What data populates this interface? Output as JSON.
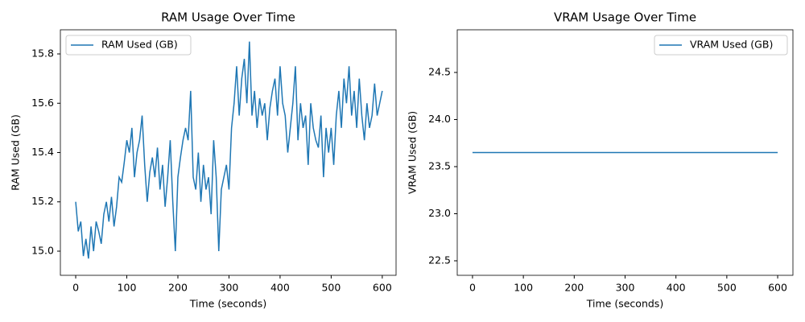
{
  "chart_data": [
    {
      "type": "line",
      "title": "RAM Usage Over Time",
      "xlabel": "Time (seconds)",
      "ylabel": "RAM Used (GB)",
      "x": [
        0,
        5,
        10,
        15,
        20,
        25,
        30,
        35,
        40,
        45,
        50,
        55,
        60,
        65,
        70,
        75,
        80,
        85,
        90,
        95,
        100,
        105,
        110,
        115,
        120,
        125,
        130,
        135,
        140,
        145,
        150,
        155,
        160,
        165,
        170,
        175,
        180,
        185,
        190,
        195,
        200,
        205,
        210,
        215,
        220,
        225,
        230,
        235,
        240,
        245,
        250,
        255,
        260,
        265,
        270,
        275,
        280,
        285,
        290,
        295,
        300,
        305,
        310,
        315,
        320,
        325,
        330,
        335,
        340,
        345,
        350,
        355,
        360,
        365,
        370,
        375,
        380,
        385,
        390,
        395,
        400,
        405,
        410,
        415,
        420,
        425,
        430,
        435,
        440,
        445,
        450,
        455,
        460,
        465,
        470,
        475,
        480,
        485,
        490,
        495,
        500,
        505,
        510,
        515,
        520,
        525,
        530,
        535,
        540,
        545,
        550,
        555,
        560,
        565,
        570,
        575,
        580,
        585,
        590,
        595,
        600
      ],
      "series": [
        {
          "name": "RAM Used (GB)",
          "color": "#1f77b4",
          "values": [
            15.2,
            15.08,
            15.12,
            14.98,
            15.05,
            14.97,
            15.1,
            15.0,
            15.12,
            15.08,
            15.03,
            15.15,
            15.2,
            15.12,
            15.22,
            15.1,
            15.18,
            15.3,
            15.28,
            15.36,
            15.45,
            15.4,
            15.5,
            15.3,
            15.4,
            15.45,
            15.55,
            15.35,
            15.2,
            15.32,
            15.38,
            15.3,
            15.42,
            15.25,
            15.35,
            15.18,
            15.3,
            15.45,
            15.2,
            15.0,
            15.3,
            15.38,
            15.45,
            15.5,
            15.45,
            15.65,
            15.3,
            15.25,
            15.4,
            15.2,
            15.35,
            15.25,
            15.3,
            15.15,
            15.45,
            15.3,
            15.0,
            15.25,
            15.3,
            15.35,
            15.25,
            15.5,
            15.6,
            15.75,
            15.55,
            15.7,
            15.78,
            15.6,
            15.85,
            15.55,
            15.65,
            15.5,
            15.62,
            15.55,
            15.6,
            15.45,
            15.58,
            15.65,
            15.7,
            15.55,
            15.75,
            15.6,
            15.55,
            15.4,
            15.5,
            15.6,
            15.75,
            15.45,
            15.6,
            15.5,
            15.55,
            15.35,
            15.6,
            15.5,
            15.45,
            15.42,
            15.55,
            15.3,
            15.5,
            15.4,
            15.5,
            15.35,
            15.55,
            15.65,
            15.5,
            15.7,
            15.6,
            15.75,
            15.55,
            15.65,
            15.5,
            15.7,
            15.55,
            15.45,
            15.6,
            15.5,
            15.55,
            15.68,
            15.55,
            15.6,
            15.65
          ]
        }
      ],
      "xlim": [
        -30,
        627
      ],
      "xticks": [
        0,
        100,
        200,
        300,
        400,
        500,
        600
      ],
      "ylim": [
        14.902,
        15.898
      ],
      "yticks": [
        {
          "value": 15,
          "label": "15.0"
        },
        15.2,
        15.4,
        15.6,
        15.8
      ],
      "legend": "upper left"
    },
    {
      "type": "line",
      "title": "VRAM Usage Over Time",
      "xlabel": "Time (seconds)",
      "ylabel": "VRAM Used (GB)",
      "x": [
        0,
        600
      ],
      "series": [
        {
          "name": "VRAM Used (GB)",
          "color": "#1f77b4",
          "values": [
            23.65,
            23.65
          ]
        }
      ],
      "xlim": [
        -30,
        630
      ],
      "xticks": [
        0,
        100,
        200,
        300,
        400,
        500,
        600
      ],
      "ylim": [
        22.346,
        24.953
      ],
      "yticks": [
        22.5,
        {
          "value": 23,
          "label": "23.0"
        },
        23.5,
        {
          "value": 24,
          "label": "24.0"
        },
        24.5
      ],
      "legend": "upper right"
    }
  ]
}
